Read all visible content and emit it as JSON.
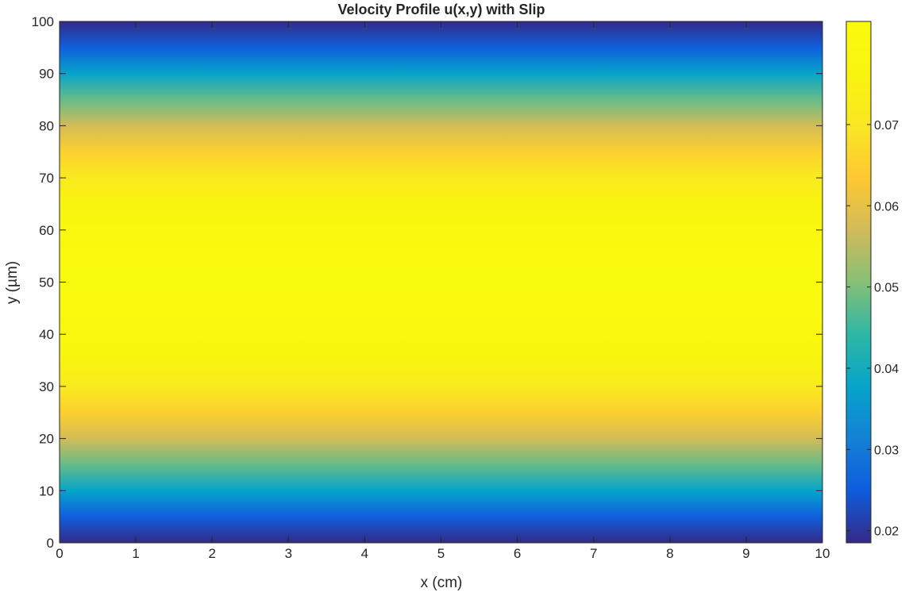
{
  "chart_data": {
    "type": "heatmap",
    "title": "Velocity Profile u(x,y) with Slip",
    "xlabel": "x (cm)",
    "ylabel": "y (µm)",
    "xlim": [
      0,
      10
    ],
    "ylim": [
      0,
      100
    ],
    "x_ticks": [
      0,
      1,
      2,
      3,
      4,
      5,
      6,
      7,
      8,
      9,
      10
    ],
    "y_ticks": [
      0,
      10,
      20,
      30,
      40,
      50,
      60,
      70,
      80,
      90,
      100
    ],
    "x_tick_labels": [
      "0",
      "1",
      "2",
      "3",
      "4",
      "5",
      "6",
      "7",
      "8",
      "9",
      "10"
    ],
    "y_tick_labels": [
      "0",
      "10",
      "20",
      "30",
      "40",
      "50",
      "60",
      "70",
      "80",
      "90",
      "100"
    ],
    "profile": {
      "description_of_values": "u depends on y only (uniform along x)",
      "y": [
        0,
        5,
        10,
        15,
        20,
        25,
        30,
        35,
        40,
        45,
        50,
        55,
        60,
        65,
        70,
        75,
        80,
        85,
        90,
        95,
        100
      ],
      "u": [
        0.0185,
        0.0255,
        0.0377,
        0.0482,
        0.0573,
        0.065,
        0.0714,
        0.0764,
        0.0799,
        0.082,
        0.0827,
        0.082,
        0.0799,
        0.0764,
        0.0714,
        0.065,
        0.0573,
        0.0482,
        0.0377,
        0.0255,
        0.0185
      ]
    },
    "colorbar": {
      "colormap": "parula",
      "range": [
        0.0185,
        0.0827
      ],
      "ticks": [
        0.02,
        0.03,
        0.04,
        0.05,
        0.06,
        0.07
      ],
      "tick_labels": [
        "0.02",
        "0.03",
        "0.04",
        "0.05",
        "0.06",
        "0.07"
      ],
      "placement": "right"
    },
    "grid": false
  }
}
